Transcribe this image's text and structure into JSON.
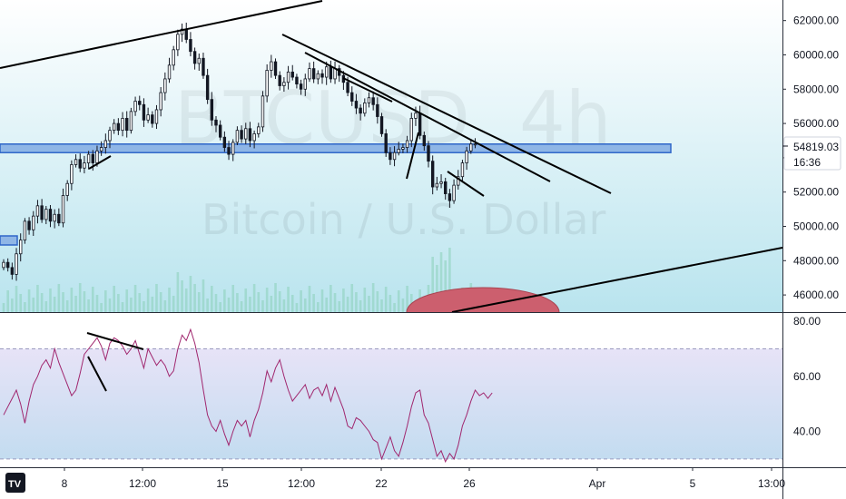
{
  "watermark": {
    "symbol": "BTCUSD",
    "interval": "4h",
    "description": "Bitcoin / U.S. Dollar"
  },
  "brand": {
    "logo_text": "TV",
    "name": "TradingView"
  },
  "current_price": {
    "label": "54819.03",
    "countdown": "16:36"
  },
  "colors": {
    "background": "#ffffff",
    "price_bg_top": "#ffffff",
    "price_bg_bottom": "#b9e4ee",
    "rsi_bg_top": "#e7e3f7",
    "rsi_bg_bottom": "#c3dcf0",
    "candle": "#131722",
    "volume": "#8bd0b8",
    "support_zone_fill": "#8fb6e6",
    "support_zone_stroke": "#2f66c9",
    "ellipse_fill": "#cc5f6e",
    "rsi_line": "#a0266e",
    "rsi_band": "#9b9bc0",
    "trendline": "#000000",
    "axis_text": "#131722",
    "separator": "#2a2e39"
  },
  "chart_data": [
    {
      "type": "candlestick",
      "title": "",
      "y_axis_ticks": [
        "62000.00",
        "60000.00",
        "58000.00",
        "56000.00",
        "54000.00",
        "52000.00",
        "50000.00",
        "48000.00",
        "46000.00"
      ],
      "ylim": [
        45000,
        63200
      ],
      "x_axis_ticks": [
        "8",
        "12:00",
        "15",
        "12:00",
        "22",
        "26",
        "Apr",
        "5",
        "13:00"
      ],
      "grid": false,
      "support_zone": [
        54300,
        54800
      ],
      "last_price": 54819.03,
      "close_series": [
        47900,
        47600,
        47200,
        48400,
        49200,
        50300,
        49800,
        50600,
        51200,
        50400,
        51000,
        50300,
        50700,
        50200,
        51800,
        52500,
        53600,
        53900,
        53400,
        53700,
        54200,
        53700,
        54400,
        54600,
        55000,
        55600,
        56000,
        55600,
        56300,
        55600,
        56700,
        57300,
        57100,
        56200,
        56500,
        56000,
        56800,
        57800,
        58600,
        59400,
        60300,
        61200,
        61500,
        60900,
        60200,
        59500,
        59800,
        58800,
        57400,
        56200,
        55900,
        55200,
        54600,
        54200,
        54900,
        55600,
        55100,
        55700,
        55000,
        55400,
        55800,
        57600,
        59100,
        59600,
        58800,
        58200,
        58400,
        59000,
        58700,
        58300,
        58000,
        58600,
        59200,
        58600,
        58900,
        58700,
        59300,
        58600,
        59200,
        58800,
        58400,
        57800,
        57300,
        56900,
        56600,
        57200,
        57500,
        57100,
        56400,
        55400,
        54300,
        53900,
        54300,
        54500,
        54600,
        55000,
        56300,
        56600,
        55300,
        54700,
        53800,
        52300,
        52500,
        52600,
        51900,
        51500,
        52400,
        52900,
        53700,
        54400,
        54800,
        54800
      ]
    },
    {
      "type": "line",
      "title": "",
      "y_axis_ticks": [
        "80.00",
        "60.00",
        "40.00"
      ],
      "ylim": [
        27,
        83
      ],
      "bands": [
        70,
        30
      ],
      "values": [
        46,
        49,
        52,
        55,
        50,
        43,
        51,
        57,
        60,
        64,
        66,
        63,
        70,
        65,
        61,
        57,
        53,
        55,
        61,
        68,
        70,
        72,
        74,
        71,
        66,
        72,
        74,
        73,
        71,
        68,
        70,
        73,
        68,
        63,
        70,
        67,
        64,
        66,
        64,
        60,
        62,
        70,
        75,
        73,
        77,
        72,
        65,
        55,
        46,
        42,
        40,
        44,
        39,
        35,
        40,
        44,
        42,
        44,
        38,
        44,
        48,
        54,
        62,
        58,
        63,
        66,
        60,
        55,
        51,
        53,
        55,
        57,
        52,
        55,
        56,
        53,
        57,
        51,
        56,
        52,
        48,
        42,
        41,
        45,
        44,
        42,
        40,
        37,
        36,
        30,
        34,
        38,
        33,
        31,
        36,
        42,
        49,
        54,
        55,
        46,
        43,
        37,
        31,
        33,
        29,
        32,
        30,
        35,
        42,
        46,
        51,
        55,
        53,
        54,
        52,
        54
      ]
    }
  ]
}
